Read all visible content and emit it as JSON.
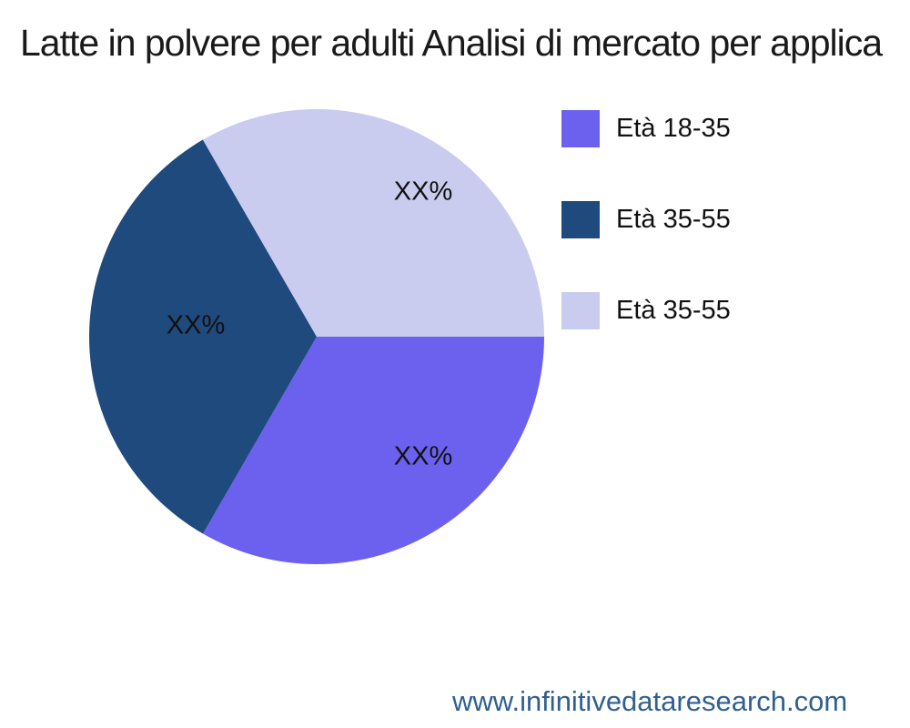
{
  "title": "Latte in polvere per adulti Analisi di mercato per applica",
  "footer": {
    "url": "www.infinitivedataresearch.com",
    "color": "#2f608f"
  },
  "chart_data": {
    "type": "pie",
    "title": "Latte in polvere per adulti Analisi di mercato per applica",
    "legend_position": "right",
    "start_angle_deg": 0,
    "direction": "clockwise",
    "slices": [
      {
        "label": "Età 18-35",
        "value": 33.33,
        "display_value": "XX%",
        "color": "#6c61ee"
      },
      {
        "label": "Età 35-55",
        "value": 33.33,
        "display_value": "XX%",
        "color": "#1f4a7d"
      },
      {
        "label": "Età 35-55",
        "value": 33.34,
        "display_value": "XX%",
        "color": "#c9cbef"
      }
    ]
  }
}
